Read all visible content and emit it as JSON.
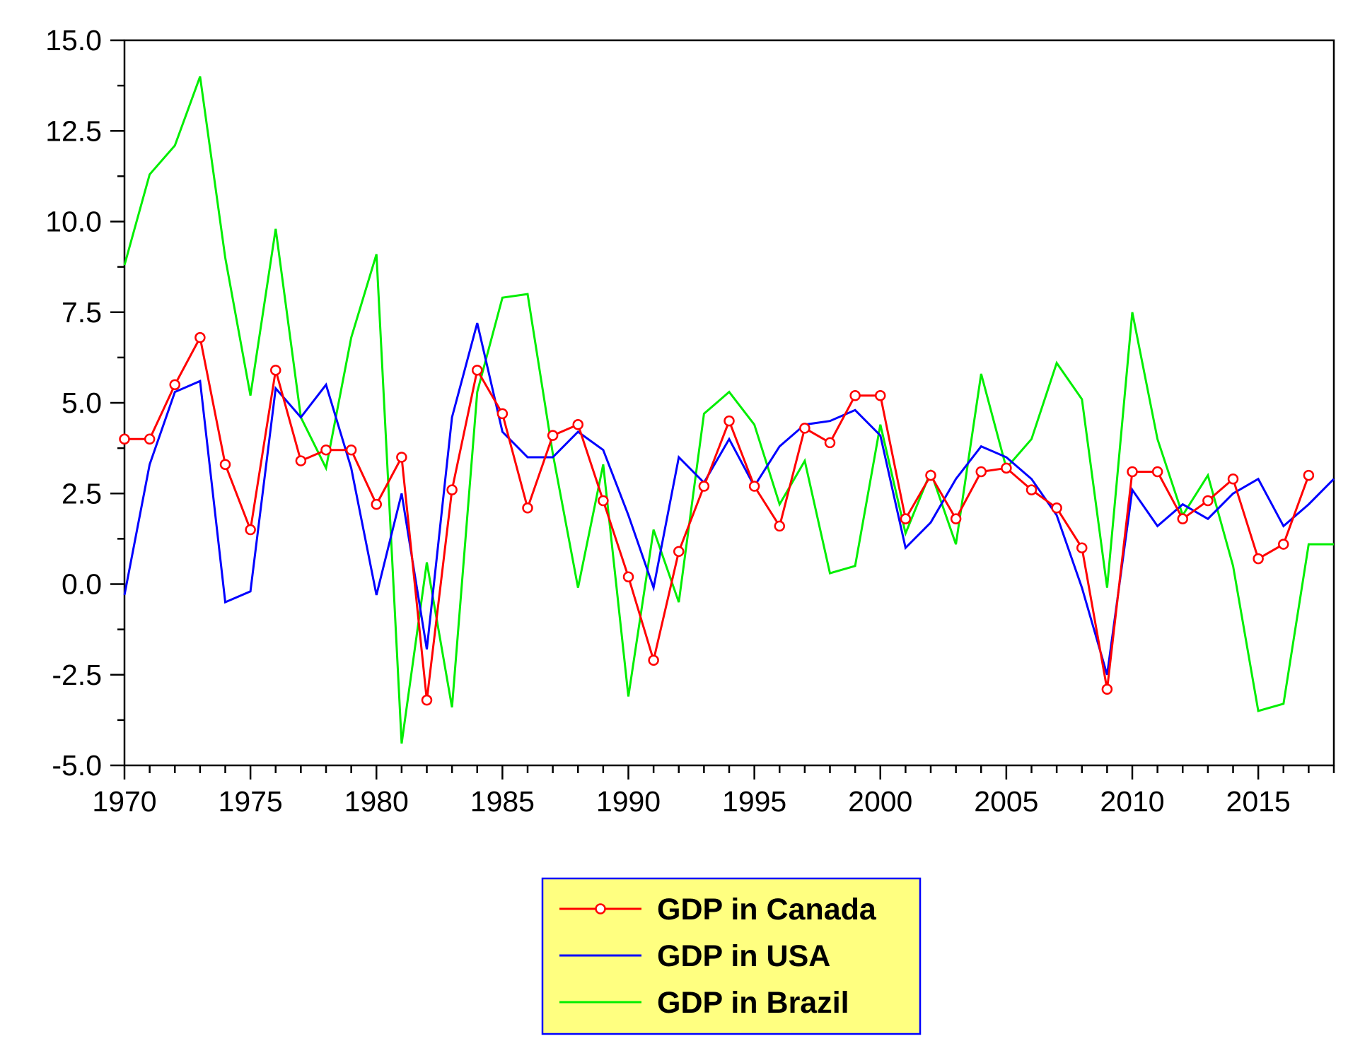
{
  "chart_data": {
    "type": "line",
    "title": "",
    "xlabel": "",
    "ylabel": "",
    "xlim": [
      1970,
      2018
    ],
    "ylim": [
      -5.0,
      15.0
    ],
    "x_ticks": [
      "1970",
      "1975",
      "1980",
      "1985",
      "1990",
      "1995",
      "2000",
      "2005",
      "2010",
      "2015"
    ],
    "y_ticks": [
      "15.0",
      "12.5",
      "10.0",
      "7.5",
      "5.0",
      "2.5",
      "0.0",
      "-2.5",
      "-5.0"
    ],
    "grid": false,
    "legend_position": "bottom-center",
    "x": [
      1970,
      1971,
      1972,
      1973,
      1974,
      1975,
      1976,
      1977,
      1978,
      1979,
      1980,
      1981,
      1982,
      1983,
      1984,
      1985,
      1986,
      1987,
      1988,
      1989,
      1990,
      1991,
      1992,
      1993,
      1994,
      1995,
      1996,
      1997,
      1998,
      1999,
      2000,
      2001,
      2002,
      2003,
      2004,
      2005,
      2006,
      2007,
      2008,
      2009,
      2010,
      2011,
      2012,
      2013,
      2014,
      2015,
      2016,
      2017,
      2018
    ],
    "series": [
      {
        "name": "GDP in Canada",
        "color": "#ff0000",
        "marker": "circle",
        "values": [
          4.0,
          4.0,
          5.5,
          6.8,
          3.3,
          1.5,
          5.9,
          3.4,
          3.7,
          3.7,
          2.2,
          3.5,
          -3.2,
          2.6,
          5.9,
          4.7,
          2.1,
          4.1,
          4.4,
          2.3,
          0.2,
          -2.1,
          0.9,
          2.7,
          4.5,
          2.7,
          1.6,
          4.3,
          3.9,
          5.2,
          5.2,
          1.8,
          3.0,
          1.8,
          3.1,
          3.2,
          2.6,
          2.1,
          1.0,
          -2.9,
          3.1,
          3.1,
          1.8,
          2.3,
          2.9,
          0.7,
          1.1,
          3.0,
          null
        ]
      },
      {
        "name": "GDP in USA",
        "color": "#0000ff",
        "marker": "none",
        "values": [
          -0.3,
          3.3,
          5.3,
          5.6,
          -0.5,
          -0.2,
          5.4,
          4.6,
          5.5,
          3.2,
          -0.3,
          2.5,
          -1.8,
          4.6,
          7.2,
          4.2,
          3.5,
          3.5,
          4.2,
          3.7,
          1.9,
          -0.1,
          3.5,
          2.8,
          4.0,
          2.7,
          3.8,
          4.4,
          4.5,
          4.8,
          4.1,
          1.0,
          1.7,
          2.9,
          3.8,
          3.5,
          2.9,
          1.9,
          -0.1,
          -2.5,
          2.6,
          1.6,
          2.2,
          1.8,
          2.5,
          2.9,
          1.6,
          2.2,
          2.9
        ]
      },
      {
        "name": "GDP in Brazil",
        "color": "#00ee00",
        "marker": "none",
        "values": [
          8.8,
          11.3,
          12.1,
          14.0,
          9.0,
          5.2,
          9.8,
          4.6,
          3.2,
          6.8,
          9.1,
          -4.4,
          0.6,
          -3.4,
          5.3,
          7.9,
          8.0,
          3.6,
          -0.1,
          3.3,
          -3.1,
          1.5,
          -0.5,
          4.7,
          5.3,
          4.4,
          2.2,
          3.4,
          0.3,
          0.5,
          4.4,
          1.4,
          3.1,
          1.1,
          5.8,
          3.2,
          4.0,
          6.1,
          5.1,
          -0.1,
          7.5,
          4.0,
          1.9,
          3.0,
          0.5,
          -3.5,
          -3.3,
          1.1,
          1.1
        ]
      }
    ]
  }
}
